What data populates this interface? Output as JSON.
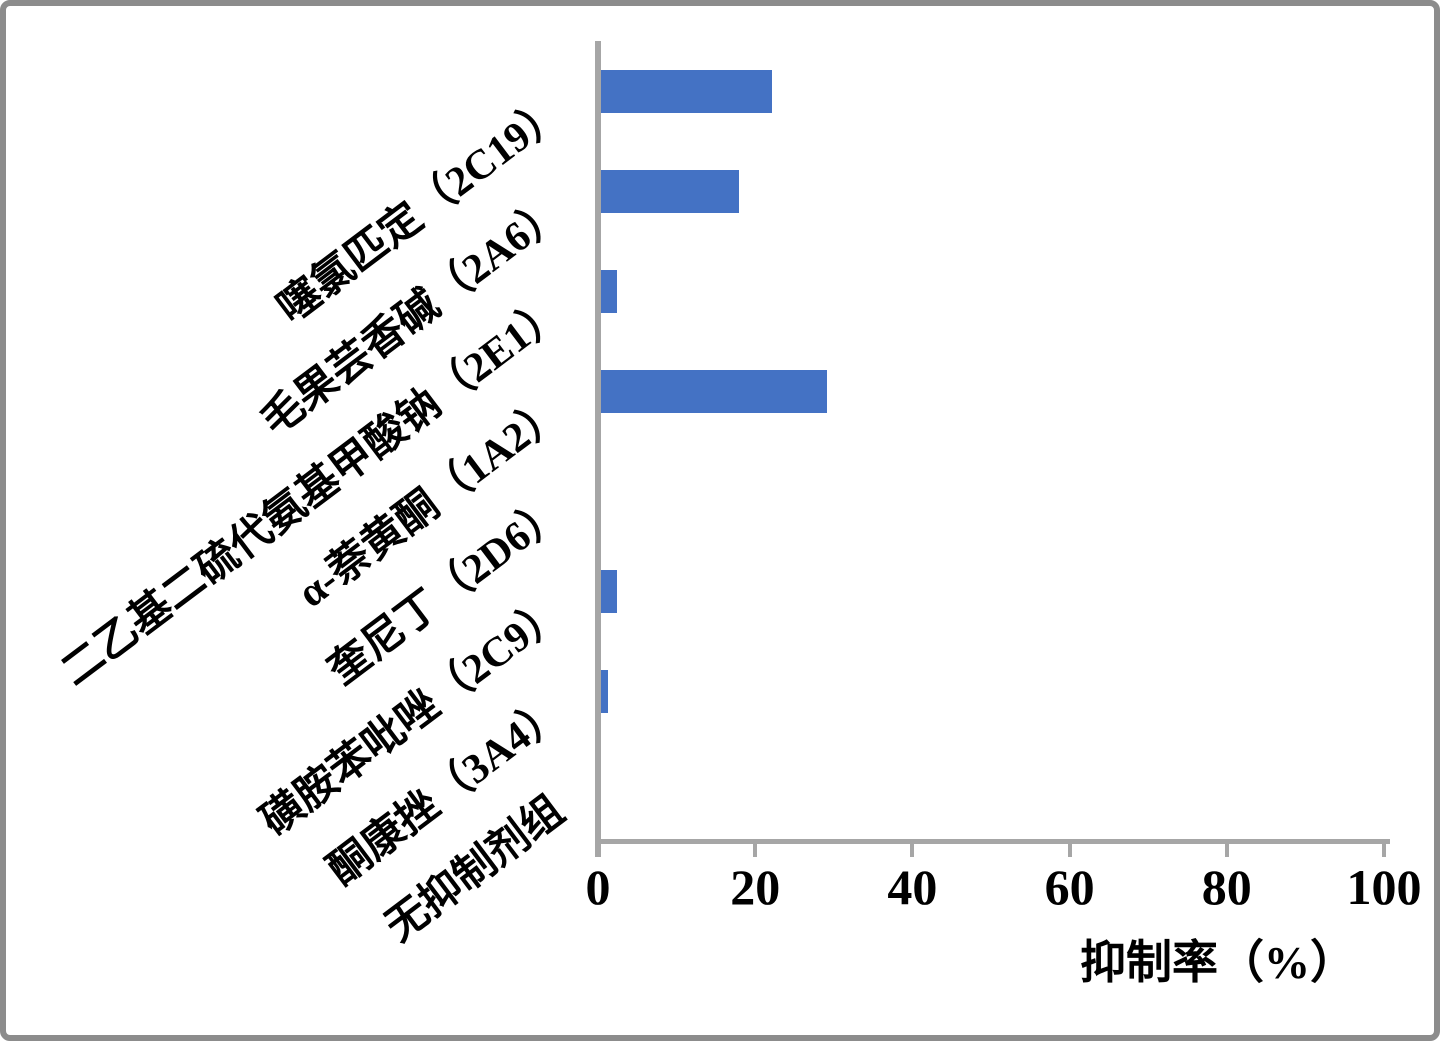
{
  "chart_data": {
    "type": "bar",
    "orientation": "horizontal",
    "title": "",
    "xlabel": "抑制率（%）",
    "ylabel": "",
    "categories": [
      "噻氯匹定（2C19）",
      "毛果芸香碱（2A6）",
      "二乙基二硫代氨基甲酸钠（2E1）",
      "α-萘黄酮（1A2）",
      "奎尼丁（2D6）",
      "磺胺苯吡唑（2C9）",
      "酮康挫（3A4）",
      "无抑制剂组"
    ],
    "values": [
      21.8,
      17.5,
      2,
      28.8,
      0,
      2,
      0.9,
      0
    ],
    "xticks": [
      "0",
      "20",
      "40",
      "60",
      "80",
      "100"
    ],
    "xlim": [
      0,
      100
    ],
    "grid": false,
    "legend": false,
    "bar_color": "#4472C4",
    "axis_color": "#A6A6A6",
    "text_color": "#000000",
    "frame_color": "#8C8C8C"
  }
}
